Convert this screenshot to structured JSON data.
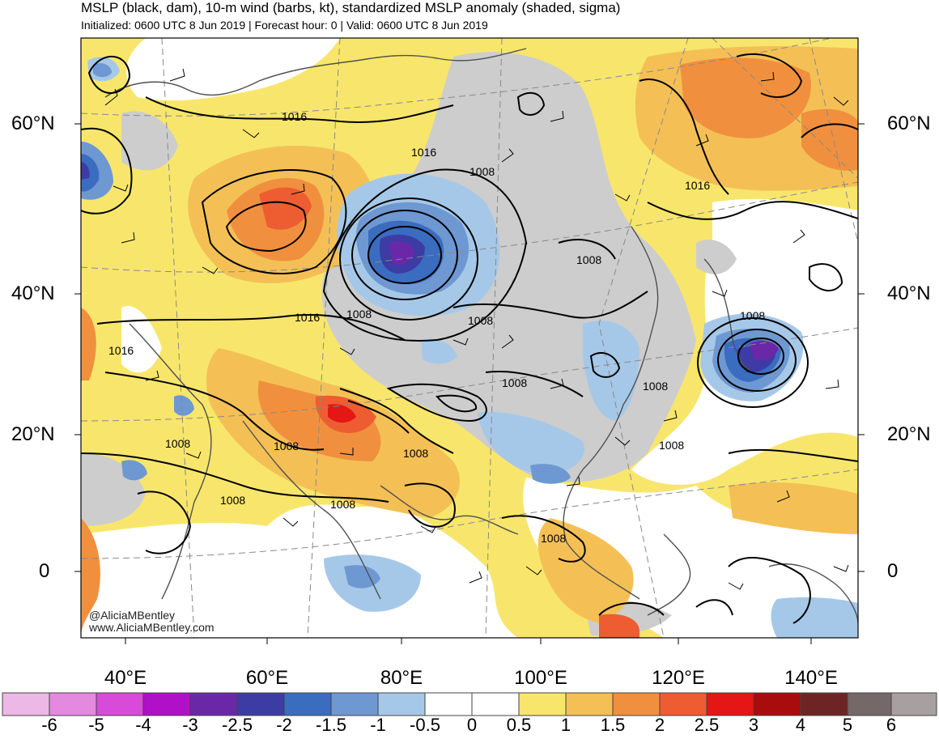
{
  "header": {
    "title": "MSLP (black, dam), 10-m wind (barbs, kt), standardized MSLP anomaly (shaded, sigma)",
    "subtitle": "Initialized: 0600 UTC 8 Jun 2019 | Forecast hour: 0 | Valid: 0600 UTC 8 Jun 2019"
  },
  "axes": {
    "latitude_labels": [
      "60°N",
      "40°N",
      "20°N",
      "0"
    ],
    "longitude_labels": [
      "40°E",
      "60°E",
      "80°E",
      "100°E",
      "120°E",
      "140°E"
    ]
  },
  "isobar_labels": [
    "1016",
    "1016",
    "1008",
    "1008",
    "1016",
    "1016",
    "1008",
    "1016",
    "1008",
    "1008",
    "1008",
    "1008",
    "1008",
    "1008",
    "1008",
    "1008",
    "1008",
    "1008",
    "1008"
  ],
  "credits": {
    "handle": "@AliciaMBentley",
    "website": "www.AliciaMBentley.com"
  },
  "colorbar": {
    "labels": [
      "-6",
      "-5",
      "-4",
      "-3",
      "-2.5",
      "-2",
      "-1.5",
      "-1",
      "-0.5",
      "0",
      "0.5",
      "1",
      "1.5",
      "2",
      "2.5",
      "3",
      "4",
      "5",
      "6"
    ],
    "colors": [
      "#ecb8e6",
      "#e588e0",
      "#d84ad8",
      "#b010c8",
      "#6a28a8",
      "#3c3ca4",
      "#3a6cc0",
      "#6e98d2",
      "#a6c8e8",
      "#ffffff",
      "#ffffff",
      "#f8e66c",
      "#f4c056",
      "#f0903e",
      "#ee5c32",
      "#e41616",
      "#a80c0c",
      "#6e2424",
      "#746868",
      "#a8a0a0"
    ]
  }
}
